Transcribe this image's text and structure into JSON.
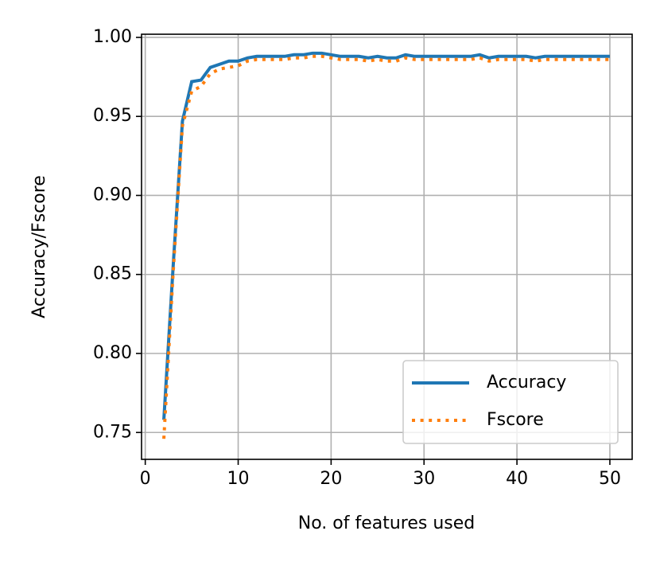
{
  "chart_data": {
    "type": "line",
    "xlabel": "No. of features used",
    "ylabel": "Accuracy/Fscore",
    "x": [
      2,
      3,
      4,
      5,
      6,
      7,
      8,
      9,
      10,
      11,
      12,
      13,
      14,
      15,
      16,
      17,
      18,
      19,
      20,
      21,
      22,
      23,
      24,
      25,
      26,
      27,
      28,
      29,
      30,
      31,
      32,
      33,
      34,
      35,
      36,
      37,
      38,
      39,
      40,
      41,
      42,
      43,
      44,
      45,
      46,
      47,
      48,
      49,
      50
    ],
    "series": [
      {
        "name": "Accuracy",
        "color": "#1f77b4",
        "linestyle": "solid",
        "values": [
          0.758,
          0.855,
          0.947,
          0.972,
          0.973,
          0.981,
          0.983,
          0.985,
          0.985,
          0.987,
          0.988,
          0.988,
          0.988,
          0.988,
          0.989,
          0.989,
          0.99,
          0.99,
          0.989,
          0.988,
          0.988,
          0.988,
          0.987,
          0.988,
          0.987,
          0.987,
          0.989,
          0.988,
          0.988,
          0.988,
          0.988,
          0.988,
          0.988,
          0.988,
          0.989,
          0.987,
          0.988,
          0.988,
          0.988,
          0.988,
          0.987,
          0.988,
          0.988,
          0.988,
          0.988,
          0.988,
          0.988,
          0.988,
          0.988
        ]
      },
      {
        "name": "Fscore",
        "color": "#ff7f0e",
        "linestyle": "dotted",
        "values": [
          0.746,
          0.851,
          0.944,
          0.966,
          0.969,
          0.977,
          0.98,
          0.981,
          0.982,
          0.985,
          0.986,
          0.986,
          0.986,
          0.986,
          0.987,
          0.987,
          0.988,
          0.988,
          0.987,
          0.986,
          0.986,
          0.986,
          0.985,
          0.986,
          0.985,
          0.985,
          0.987,
          0.986,
          0.986,
          0.986,
          0.986,
          0.986,
          0.986,
          0.986,
          0.987,
          0.985,
          0.986,
          0.986,
          0.986,
          0.986,
          0.985,
          0.986,
          0.986,
          0.986,
          0.986,
          0.986,
          0.986,
          0.986,
          0.986
        ]
      }
    ],
    "xlim": [
      -0.4,
      52.4
    ],
    "ylim": [
      0.733,
      1.002
    ],
    "xticks": [
      0,
      10,
      20,
      30,
      40,
      50
    ],
    "yticks": [
      {
        "value": 0.75,
        "label": "0.75"
      },
      {
        "value": 0.8,
        "label": "0.80"
      },
      {
        "value": 0.85,
        "label": "0.85"
      },
      {
        "value": 0.9,
        "label": "0.90"
      },
      {
        "value": 0.95,
        "label": "0.95"
      },
      {
        "value": 1.0,
        "label": "1.00"
      }
    ],
    "grid": true,
    "legend": "lower right"
  }
}
